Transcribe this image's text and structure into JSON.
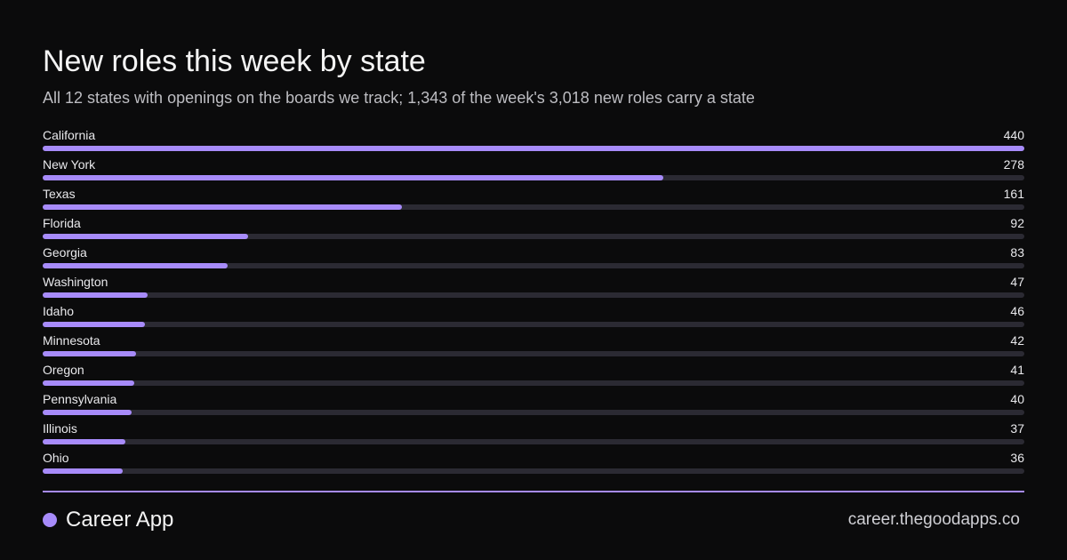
{
  "title": "New roles this week by state",
  "subtitle": "All 12 states with openings on the boards we track; 1,343 of the week's 3,018 new roles carry a state",
  "brand": {
    "name": "Career App",
    "url": "career.thegoodapps.co"
  },
  "colors": {
    "background": "#0b0b0c",
    "accent": "#a78bfa",
    "track": "#2b2a33"
  },
  "chart_data": {
    "type": "bar",
    "orientation": "horizontal",
    "categories": [
      "California",
      "New York",
      "Texas",
      "Florida",
      "Georgia",
      "Washington",
      "Idaho",
      "Minnesota",
      "Oregon",
      "Pennsylvania",
      "Illinois",
      "Ohio"
    ],
    "values": [
      440,
      278,
      161,
      92,
      83,
      47,
      46,
      42,
      41,
      40,
      37,
      36
    ],
    "xlim": [
      0,
      440
    ],
    "grid": false,
    "legend": "none"
  }
}
